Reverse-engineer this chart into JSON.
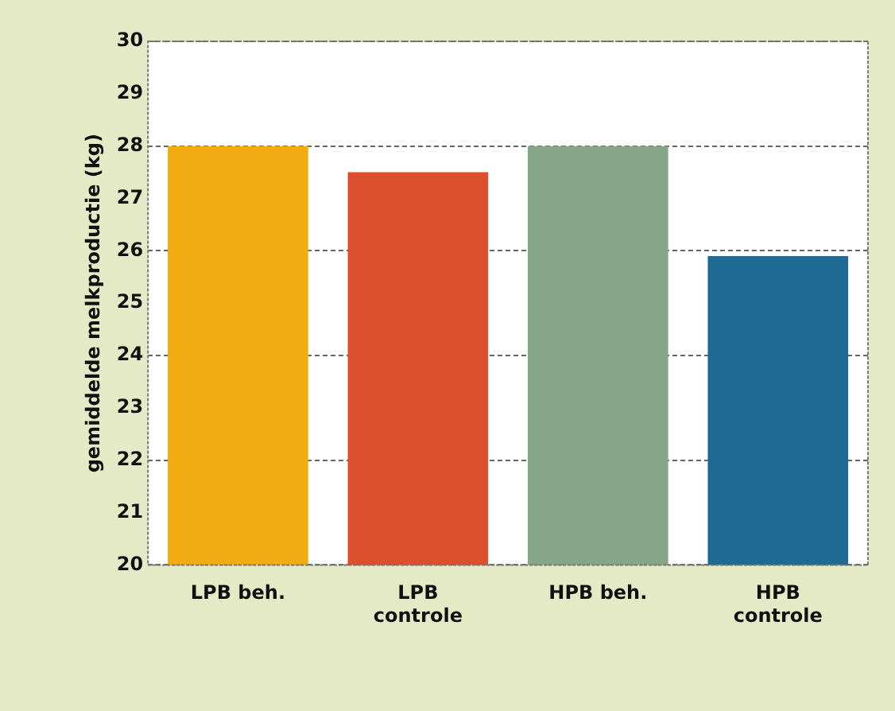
{
  "chart_data": {
    "type": "bar",
    "ylabel": "gemiddelde melkproductie (kg)",
    "categories": [
      "LPB beh.",
      "LPB\ncontrole",
      "HPB beh.",
      "HPB\ncontrole"
    ],
    "values": [
      28.0,
      27.5,
      28.0,
      25.9
    ],
    "colors": [
      "#f0ac10",
      "#dc4e2c",
      "#86a587",
      "#1f6a94"
    ],
    "ylim": [
      20,
      30
    ],
    "yticks": [
      20,
      21,
      22,
      23,
      24,
      25,
      26,
      27,
      28,
      29,
      30
    ],
    "grid": "y",
    "legend": false
  }
}
